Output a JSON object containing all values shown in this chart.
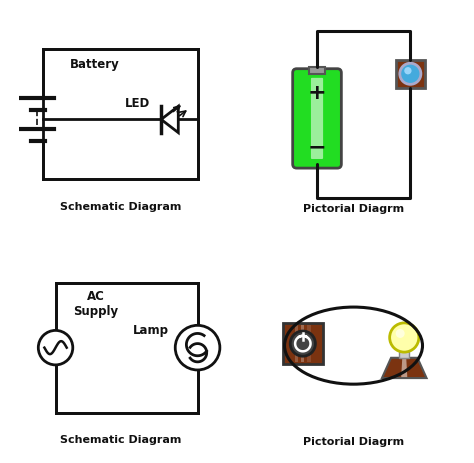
{
  "bg_color": "#ffffff",
  "title_top_left": "Schematic Diagram",
  "title_top_right": "Pictorial Diagrm",
  "title_bot_left": "Schematic Diagram",
  "title_bot_right": "Pictorial Diagrm",
  "battery_green": "#22dd22",
  "battery_green_light": "#88ff88",
  "battery_cap": "#999999",
  "brown": "#7B3310",
  "brown_light": "#c8853a",
  "led_blue": "#44aadd",
  "led_blue_light": "#aaddff",
  "lamp_yellow": "#ffffaa",
  "lamp_base_color": "#dddddd",
  "wire_color": "#111111",
  "schematic_color": "#111111"
}
